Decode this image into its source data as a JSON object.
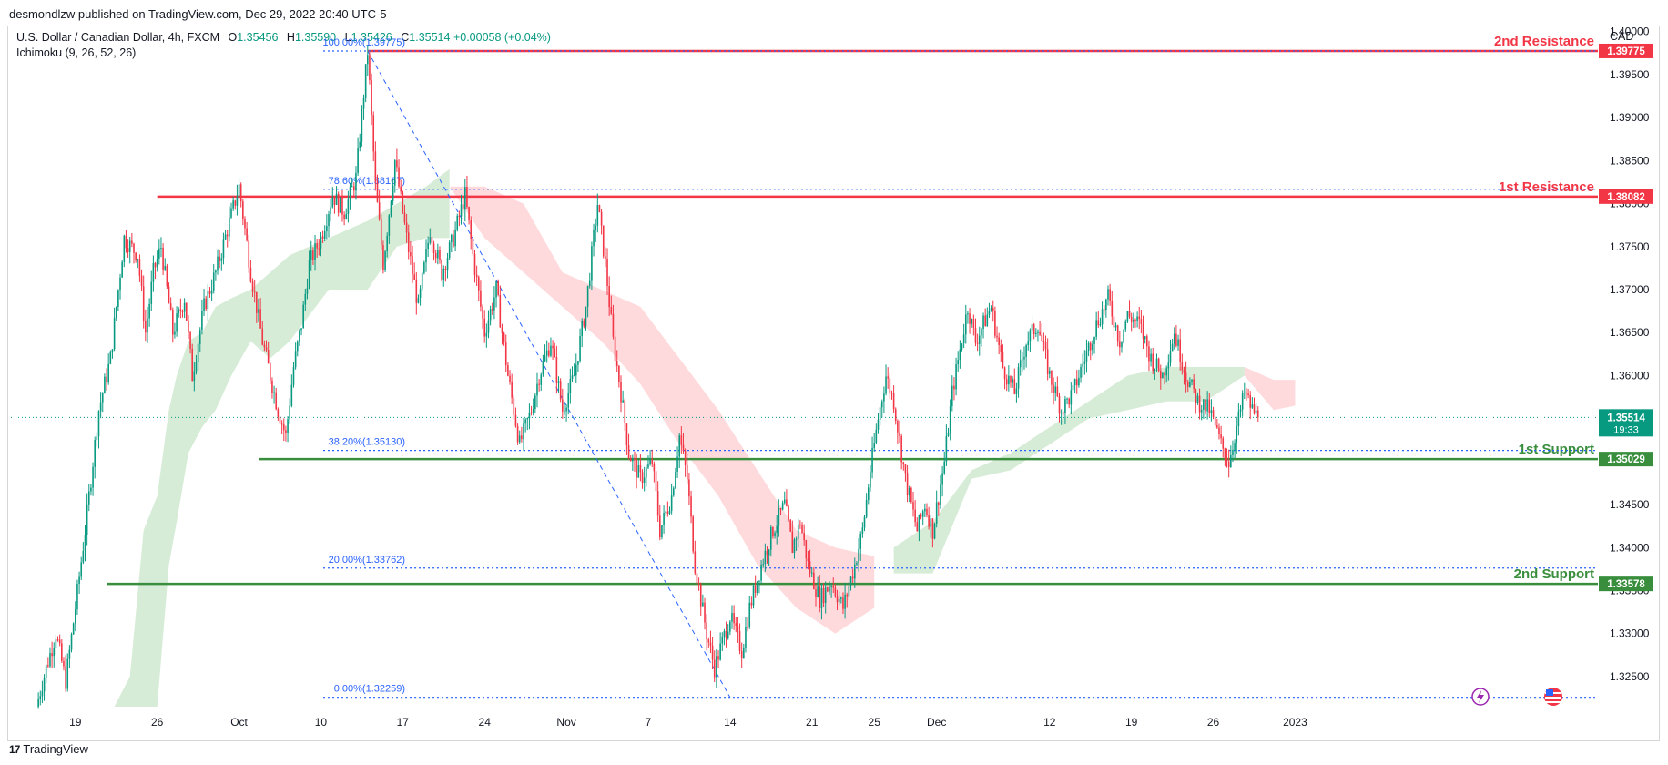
{
  "publisher": "desmondlzw published on TradingView.com, Dec 29, 2022 20:40 UTC-5",
  "symbol": {
    "name": "U.S. Dollar / Canadian Dollar, 4h, FXCM",
    "open_label": "O",
    "open": "1.35456",
    "high_label": "H",
    "high": "1.35590",
    "low_label": "L",
    "low": "1.35426",
    "close_label": "C",
    "close": "1.35514",
    "change": "+0.00058 (+0.04%)"
  },
  "indicator": "Ichimoku (9, 26, 52, 26)",
  "currency": "CAD",
  "footer": {
    "brand": "TradingView",
    "mark": "17"
  },
  "colors": {
    "up": "#089981",
    "down": "#f23645",
    "resistance": "#f23645",
    "support": "#388e3c",
    "fib": "#2962ff",
    "cloud_bull": "#c8e6c9",
    "cloud_bear": "#ffcdd2",
    "axis_text": "#131722"
  },
  "chart_data": {
    "type": "candlestick",
    "timeframe": "4h",
    "ylim": [
      1.3215,
      1.4005
    ],
    "y_ticks": [
      1.325,
      1.33,
      1.335,
      1.34,
      1.345,
      1.35,
      1.355,
      1.36,
      1.365,
      1.37,
      1.375,
      1.38,
      1.385,
      1.39,
      1.395,
      1.4
    ],
    "y_tick_labels": [
      "1.32500",
      "1.33000",
      "1.33500",
      "1.34000",
      "1.34500",
      "1.35000",
      "1.35500",
      "1.36000",
      "1.36500",
      "1.37000",
      "1.37500",
      "1.38000",
      "1.38500",
      "1.39000",
      "1.39500",
      "1.40000"
    ],
    "x_labels": [
      {
        "label": "19",
        "bar": 20
      },
      {
        "label": "26",
        "bar": 62
      },
      {
        "label": "Oct",
        "bar": 104
      },
      {
        "label": "10",
        "bar": 146
      },
      {
        "label": "17",
        "bar": 188
      },
      {
        "label": "24",
        "bar": 230
      },
      {
        "label": "Nov",
        "bar": 272
      },
      {
        "label": "7",
        "bar": 314
      },
      {
        "label": "14",
        "bar": 356
      },
      {
        "label": "21",
        "bar": 398
      },
      {
        "label": "25",
        "bar": 430
      },
      {
        "label": "Dec",
        "bar": 462
      },
      {
        "label": "12",
        "bar": 520
      },
      {
        "label": "19",
        "bar": 562
      },
      {
        "label": "26",
        "bar": 604
      },
      {
        "label": "2023",
        "bar": 646
      }
    ],
    "price_path": [
      [
        0,
        1.3215
      ],
      [
        5,
        1.326
      ],
      [
        10,
        1.33
      ],
      [
        15,
        1.3245
      ],
      [
        20,
        1.333
      ],
      [
        25,
        1.342
      ],
      [
        32,
        1.356
      ],
      [
        38,
        1.362
      ],
      [
        45,
        1.376
      ],
      [
        52,
        1.374
      ],
      [
        56,
        1.365
      ],
      [
        60,
        1.372
      ],
      [
        64,
        1.375
      ],
      [
        70,
        1.365
      ],
      [
        76,
        1.369
      ],
      [
        80,
        1.36
      ],
      [
        86,
        1.368
      ],
      [
        92,
        1.372
      ],
      [
        98,
        1.377
      ],
      [
        104,
        1.382
      ],
      [
        110,
        1.372
      ],
      [
        116,
        1.364
      ],
      [
        120,
        1.36
      ],
      [
        124,
        1.356
      ],
      [
        128,
        1.353
      ],
      [
        132,
        1.361
      ],
      [
        136,
        1.366
      ],
      [
        140,
        1.373
      ],
      [
        146,
        1.376
      ],
      [
        152,
        1.381
      ],
      [
        158,
        1.379
      ],
      [
        164,
        1.383
      ],
      [
        170,
        1.3977
      ],
      [
        174,
        1.382
      ],
      [
        178,
        1.373
      ],
      [
        184,
        1.385
      ],
      [
        190,
        1.376
      ],
      [
        196,
        1.368
      ],
      [
        202,
        1.377
      ],
      [
        208,
        1.372
      ],
      [
        214,
        1.376
      ],
      [
        220,
        1.381
      ],
      [
        224,
        1.374
      ],
      [
        230,
        1.365
      ],
      [
        236,
        1.37
      ],
      [
        242,
        1.36
      ],
      [
        248,
        1.352
      ],
      [
        254,
        1.356
      ],
      [
        258,
        1.36
      ],
      [
        264,
        1.364
      ],
      [
        270,
        1.356
      ],
      [
        276,
        1.36
      ],
      [
        282,
        1.368
      ],
      [
        288,
        1.38
      ],
      [
        292,
        1.373
      ],
      [
        296,
        1.364
      ],
      [
        300,
        1.358
      ],
      [
        304,
        1.351
      ],
      [
        310,
        1.348
      ],
      [
        316,
        1.35
      ],
      [
        320,
        1.342
      ],
      [
        326,
        1.346
      ],
      [
        330,
        1.353
      ],
      [
        334,
        1.348
      ],
      [
        338,
        1.338
      ],
      [
        344,
        1.33
      ],
      [
        348,
        1.326
      ],
      [
        352,
        1.329
      ],
      [
        356,
        1.332
      ],
      [
        362,
        1.328
      ],
      [
        366,
        1.333
      ],
      [
        372,
        1.338
      ],
      [
        378,
        1.342
      ],
      [
        384,
        1.345
      ],
      [
        388,
        1.34
      ],
      [
        392,
        1.343
      ],
      [
        396,
        1.338
      ],
      [
        402,
        1.334
      ],
      [
        408,
        1.336
      ],
      [
        414,
        1.333
      ],
      [
        420,
        1.338
      ],
      [
        424,
        1.342
      ],
      [
        428,
        1.349
      ],
      [
        432,
        1.355
      ],
      [
        436,
        1.36
      ],
      [
        440,
        1.357
      ],
      [
        446,
        1.348
      ],
      [
        452,
        1.342
      ],
      [
        456,
        1.345
      ],
      [
        460,
        1.342
      ],
      [
        466,
        1.35
      ],
      [
        470,
        1.358
      ],
      [
        474,
        1.363
      ],
      [
        478,
        1.368
      ],
      [
        482,
        1.364
      ],
      [
        486,
        1.366
      ],
      [
        490,
        1.368
      ],
      [
        496,
        1.361
      ],
      [
        502,
        1.358
      ],
      [
        508,
        1.364
      ],
      [
        514,
        1.366
      ],
      [
        520,
        1.36
      ],
      [
        526,
        1.356
      ],
      [
        532,
        1.358
      ],
      [
        538,
        1.362
      ],
      [
        544,
        1.366
      ],
      [
        550,
        1.369
      ],
      [
        556,
        1.364
      ],
      [
        560,
        1.367
      ],
      [
        566,
        1.366
      ],
      [
        572,
        1.362
      ],
      [
        578,
        1.36
      ],
      [
        584,
        1.365
      ],
      [
        590,
        1.36
      ],
      [
        596,
        1.357
      ],
      [
        602,
        1.356
      ],
      [
        608,
        1.352
      ],
      [
        612,
        1.35
      ],
      [
        616,
        1.354
      ],
      [
        620,
        1.358
      ],
      [
        624,
        1.356
      ],
      [
        627,
        1.35514
      ]
    ],
    "ichimoku_cloud": [
      {
        "type": "bull",
        "from": [
          [
            40,
            1.3215
          ],
          [
            48,
            1.325
          ],
          [
            55,
            1.342
          ],
          [
            62,
            1.346
          ],
          [
            68,
            1.356
          ],
          [
            72,
            1.36
          ],
          [
            78,
            1.364
          ],
          [
            85,
            1.365
          ],
          [
            92,
            1.368
          ],
          [
            100,
            1.369
          ],
          [
            110,
            1.37
          ],
          [
            120,
            1.372
          ],
          [
            130,
            1.374
          ],
          [
            150,
            1.376
          ],
          [
            170,
            1.378
          ],
          [
            185,
            1.38
          ],
          [
            200,
            1.382
          ],
          [
            212,
            1.384
          ]
        ],
        "to": [
          [
            40,
            1.3215
          ],
          [
            48,
            1.3215
          ],
          [
            55,
            1.3215
          ],
          [
            62,
            1.3215
          ],
          [
            68,
            1.338
          ],
          [
            72,
            1.343
          ],
          [
            78,
            1.351
          ],
          [
            85,
            1.354
          ],
          [
            92,
            1.356
          ],
          [
            100,
            1.36
          ],
          [
            110,
            1.364
          ],
          [
            120,
            1.362
          ],
          [
            130,
            1.364
          ],
          [
            150,
            1.37
          ],
          [
            170,
            1.37
          ],
          [
            185,
            1.375
          ],
          [
            200,
            1.376
          ],
          [
            212,
            1.376
          ]
        ]
      },
      {
        "type": "bear",
        "from": [
          [
            212,
            1.382
          ],
          [
            230,
            1.382
          ],
          [
            250,
            1.38
          ],
          [
            270,
            1.372
          ],
          [
            290,
            1.37
          ],
          [
            310,
            1.368
          ],
          [
            330,
            1.362
          ],
          [
            350,
            1.356
          ],
          [
            370,
            1.349
          ],
          [
            390,
            1.342
          ],
          [
            410,
            1.34
          ],
          [
            430,
            1.339
          ]
        ],
        "to": [
          [
            212,
            1.382
          ],
          [
            230,
            1.376
          ],
          [
            250,
            1.372
          ],
          [
            270,
            1.368
          ],
          [
            290,
            1.364
          ],
          [
            310,
            1.359
          ],
          [
            330,
            1.352
          ],
          [
            350,
            1.346
          ],
          [
            370,
            1.338
          ],
          [
            390,
            1.333
          ],
          [
            410,
            1.33
          ],
          [
            430,
            1.333
          ]
        ]
      },
      {
        "type": "bull",
        "from": [
          [
            440,
            1.34
          ],
          [
            460,
            1.343
          ],
          [
            480,
            1.349
          ],
          [
            500,
            1.351
          ],
          [
            520,
            1.354
          ],
          [
            540,
            1.357
          ],
          [
            560,
            1.36
          ],
          [
            580,
            1.361
          ],
          [
            600,
            1.361
          ],
          [
            620,
            1.361
          ]
        ],
        "to": [
          [
            440,
            1.337
          ],
          [
            460,
            1.337
          ],
          [
            480,
            1.348
          ],
          [
            500,
            1.349
          ],
          [
            520,
            1.352
          ],
          [
            540,
            1.355
          ],
          [
            560,
            1.356
          ],
          [
            580,
            1.357
          ],
          [
            600,
            1.357
          ],
          [
            620,
            1.36
          ]
        ]
      },
      {
        "type": "bear",
        "from": [
          [
            620,
            1.361
          ],
          [
            635,
            1.3595
          ],
          [
            646,
            1.3595
          ]
        ],
        "to": [
          [
            620,
            1.36
          ],
          [
            635,
            1.356
          ],
          [
            646,
            1.3565
          ]
        ]
      }
    ],
    "horizontal_levels": [
      {
        "label": "2nd Resistance",
        "value": 1.39775,
        "tag": "1.39775",
        "color": "resistance",
        "start_bar": 170
      },
      {
        "label": "1st Resistance",
        "value": 1.38082,
        "tag": "1.38082",
        "color": "resistance",
        "start_bar": 62
      },
      {
        "label": "1st Support",
        "value": 1.35029,
        "tag": "1.35029",
        "color": "support",
        "start_bar": 114
      },
      {
        "label": "2nd Support",
        "value": 1.33578,
        "tag": "1.33578",
        "color": "support",
        "start_bar": 36
      }
    ],
    "fibonacci": [
      {
        "label": "100.00%(1.39775)",
        "value": 1.39775
      },
      {
        "label": "78.60%(1.38167)",
        "value": 1.38167
      },
      {
        "label": "38.20%(1.35130)",
        "value": 1.3513
      },
      {
        "label": "20.00%(1.33762)",
        "value": 1.33762
      },
      {
        "label": "0.00%(1.32259)",
        "value": 1.32259
      }
    ],
    "fib_trendline": {
      "from": [
        170,
        1.39775
      ],
      "to": [
        356,
        1.32259
      ]
    },
    "current_price": {
      "value": 1.35514,
      "label": "1.35514",
      "countdown": "19:33"
    }
  }
}
